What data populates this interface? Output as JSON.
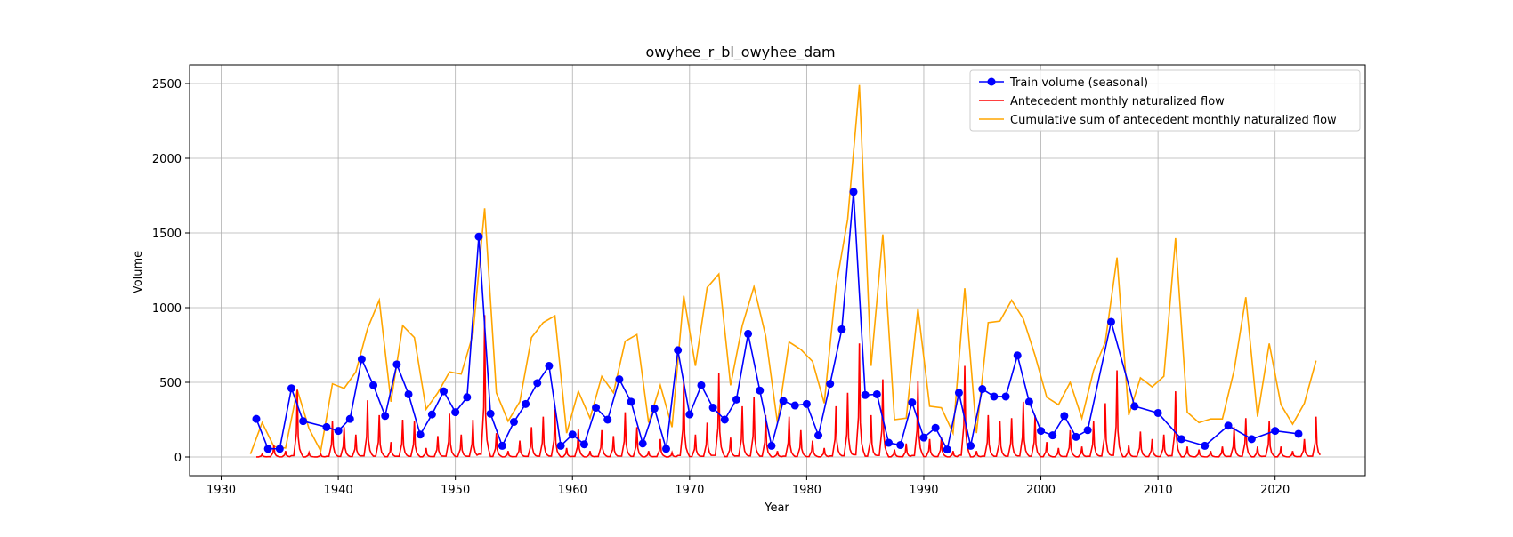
{
  "chart_data": {
    "type": "line",
    "title": "owyhee_r_bl_owyhee_dam",
    "xlabel": "Year",
    "ylabel": "Volume",
    "xlim": [
      1927.3,
      2027.7
    ],
    "ylim": [
      -125,
      2625
    ],
    "x_ticks": [
      1930,
      1940,
      1950,
      1960,
      1970,
      1980,
      1990,
      2000,
      2010,
      2020
    ],
    "y_ticks": [
      0,
      500,
      1000,
      1500,
      2000,
      2500
    ],
    "grid": true,
    "legend_position": "top-right",
    "colors": {
      "train": "#0000ff",
      "monthly": "#ff0000",
      "cumulative": "#ffa500"
    },
    "series": [
      {
        "name": "Train volume (seasonal)",
        "style": "line-marker",
        "x": [
          1933,
          1934,
          1935,
          1936,
          1937,
          1939,
          1940,
          1941,
          1942,
          1943,
          1944,
          1945,
          1946,
          1947,
          1948,
          1949,
          1950,
          1951,
          1952,
          1953,
          1954,
          1955,
          1956,
          1957,
          1958,
          1959,
          1960,
          1961,
          1962,
          1963,
          1964,
          1965,
          1966,
          1967,
          1968,
          1969,
          1970,
          1971,
          1972,
          1973,
          1974,
          1975,
          1976,
          1977,
          1978,
          1979,
          1980,
          1981,
          1982,
          1983,
          1984,
          1985,
          1986,
          1987,
          1988,
          1989,
          1990,
          1991,
          1992,
          1993,
          1994,
          1995,
          1996,
          1997,
          1998,
          1999,
          2000,
          2001,
          2002,
          2003,
          2004,
          2006,
          2008,
          2010,
          2012,
          2014,
          2016,
          2018,
          2020,
          2022
        ],
        "y": [
          255,
          55,
          55,
          460,
          240,
          200,
          175,
          255,
          655,
          480,
          275,
          620,
          420,
          150,
          285,
          440,
          300,
          400,
          1475,
          290,
          75,
          235,
          355,
          495,
          610,
          75,
          150,
          85,
          330,
          250,
          520,
          370,
          90,
          325,
          55,
          715,
          285,
          480,
          330,
          250,
          385,
          825,
          445,
          75,
          375,
          345,
          355,
          145,
          490,
          855,
          1775,
          415,
          420,
          95,
          80,
          365,
          130,
          195,
          50,
          430,
          75,
          455,
          405,
          405,
          680,
          370,
          175,
          145,
          275,
          135,
          180,
          905,
          340,
          295,
          120,
          75,
          210,
          120,
          175,
          155
        ]
      },
      {
        "name": "Antecedent monthly naturalized flow",
        "style": "line",
        "peaks": [
          [
            1933,
            20
          ],
          [
            1934,
            80
          ],
          [
            1935,
            40
          ],
          [
            1936,
            450
          ],
          [
            1937,
            30
          ],
          [
            1938,
            20
          ],
          [
            1939,
            240
          ],
          [
            1940,
            200
          ],
          [
            1941,
            150
          ],
          [
            1942,
            380
          ],
          [
            1943,
            280
          ],
          [
            1944,
            100
          ],
          [
            1945,
            250
          ],
          [
            1946,
            240
          ],
          [
            1947,
            60
          ],
          [
            1948,
            140
          ],
          [
            1949,
            290
          ],
          [
            1950,
            150
          ],
          [
            1951,
            250
          ],
          [
            1952,
            950
          ],
          [
            1953,
            160
          ],
          [
            1954,
            40
          ],
          [
            1955,
            110
          ],
          [
            1956,
            200
          ],
          [
            1957,
            270
          ],
          [
            1958,
            320
          ],
          [
            1959,
            60
          ],
          [
            1960,
            190
          ],
          [
            1961,
            40
          ],
          [
            1962,
            180
          ],
          [
            1963,
            140
          ],
          [
            1964,
            300
          ],
          [
            1965,
            200
          ],
          [
            1966,
            40
          ],
          [
            1967,
            120
          ],
          [
            1968,
            30
          ],
          [
            1969,
            520
          ],
          [
            1970,
            150
          ],
          [
            1971,
            230
          ],
          [
            1972,
            560
          ],
          [
            1973,
            130
          ],
          [
            1974,
            340
          ],
          [
            1975,
            400
          ],
          [
            1976,
            280
          ],
          [
            1977,
            40
          ],
          [
            1978,
            270
          ],
          [
            1979,
            180
          ],
          [
            1980,
            110
          ],
          [
            1981,
            60
          ],
          [
            1982,
            340
          ],
          [
            1983,
            430
          ],
          [
            1984,
            760
          ],
          [
            1985,
            280
          ],
          [
            1986,
            520
          ],
          [
            1987,
            50
          ],
          [
            1988,
            90
          ],
          [
            1989,
            510
          ],
          [
            1990,
            120
          ],
          [
            1991,
            130
          ],
          [
            1992,
            40
          ],
          [
            1993,
            610
          ],
          [
            1994,
            40
          ],
          [
            1995,
            280
          ],
          [
            1996,
            240
          ],
          [
            1997,
            260
          ],
          [
            1998,
            370
          ],
          [
            1999,
            280
          ],
          [
            2000,
            100
          ],
          [
            2001,
            60
          ],
          [
            2002,
            180
          ],
          [
            2003,
            70
          ],
          [
            2004,
            240
          ],
          [
            2005,
            360
          ],
          [
            2006,
            580
          ],
          [
            2007,
            80
          ],
          [
            2008,
            170
          ],
          [
            2009,
            120
          ],
          [
            2010,
            150
          ],
          [
            2011,
            440
          ],
          [
            2012,
            70
          ],
          [
            2013,
            50
          ],
          [
            2014,
            40
          ],
          [
            2015,
            70
          ],
          [
            2016,
            200
          ],
          [
            2017,
            260
          ],
          [
            2018,
            70
          ],
          [
            2019,
            240
          ],
          [
            2020,
            70
          ],
          [
            2021,
            40
          ],
          [
            2022,
            120
          ],
          [
            2023,
            270
          ]
        ]
      },
      {
        "name": "Cumulative sum of antecedent monthly naturalized flow",
        "style": "line",
        "x": [
          1932.5,
          1933.5,
          1934.5,
          1935.5,
          1936.5,
          1937.5,
          1938.5,
          1939.5,
          1940.5,
          1941.5,
          1942.5,
          1943.5,
          1944.5,
          1945.5,
          1946.5,
          1947.5,
          1948.5,
          1949.5,
          1950.5,
          1951.5,
          1952.5,
          1953.5,
          1954.5,
          1955.5,
          1956.5,
          1957.5,
          1958.5,
          1959.5,
          1960.5,
          1961.5,
          1962.5,
          1963.5,
          1964.5,
          1965.5,
          1966.5,
          1967.5,
          1968.5,
          1969.5,
          1970.5,
          1971.5,
          1972.5,
          1973.5,
          1974.5,
          1975.5,
          1976.5,
          1977.5,
          1978.5,
          1979.5,
          1980.5,
          1981.5,
          1982.5,
          1983.5,
          1984.5,
          1985.5,
          1986.5,
          1987.5,
          1988.5,
          1989.5,
          1990.5,
          1991.5,
          1992.5,
          1993.5,
          1994.5,
          1995.5,
          1996.5,
          1997.5,
          1998.5,
          1999.5,
          2000.5,
          2001.5,
          2002.5,
          2003.5,
          2004.5,
          2005.5,
          2006.5,
          2007.5,
          2008.5,
          2009.5,
          2010.5,
          2011.5,
          2012.5,
          2013.5,
          2014.5,
          2015.5,
          2016.5,
          2017.5,
          2018.5,
          2019.5,
          2020.5,
          2021.5,
          2022.5,
          2023.5
        ],
        "y": [
          20,
          230,
          70,
          60,
          450,
          190,
          40,
          490,
          460,
          570,
          860,
          1050,
          370,
          880,
          800,
          320,
          430,
          570,
          555,
          820,
          1665,
          430,
          240,
          370,
          800,
          900,
          945,
          160,
          440,
          260,
          540,
          430,
          775,
          820,
          230,
          480,
          200,
          1080,
          610,
          1135,
          1225,
          480,
          880,
          1140,
          810,
          230,
          770,
          720,
          640,
          360,
          1140,
          1590,
          2490,
          610,
          1490,
          250,
          260,
          995,
          340,
          330,
          160,
          1130,
          160,
          900,
          910,
          1050,
          925,
          680,
          400,
          350,
          500,
          260,
          580,
          770,
          1335,
          280,
          530,
          470,
          540,
          1465,
          300,
          230,
          255,
          255,
          580,
          1070,
          270,
          760,
          350,
          220,
          360,
          645
        ]
      }
    ]
  }
}
